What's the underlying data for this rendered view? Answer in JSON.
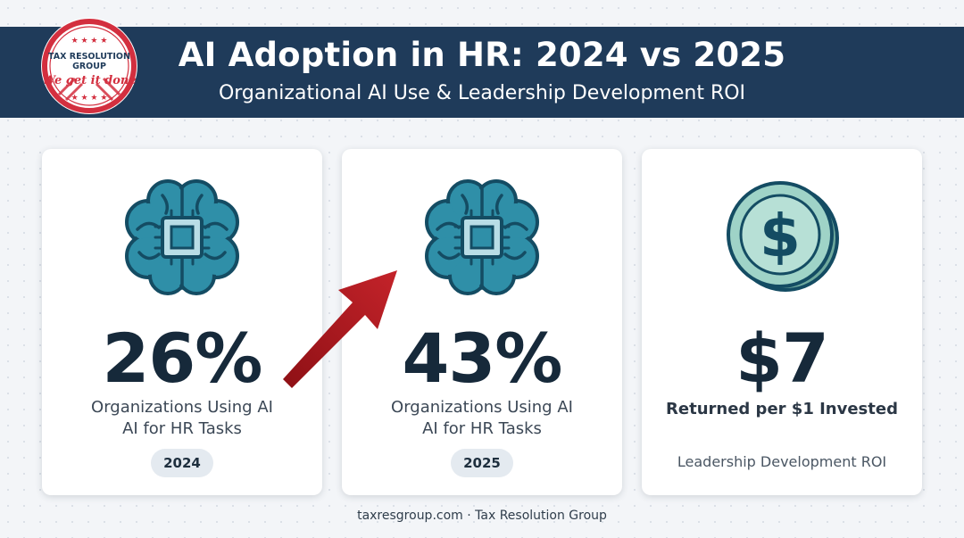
{
  "header": {
    "title": "AI Adoption in HR: 2024 vs 2025",
    "subtitle": "Organizational AI Use & Leadership Development ROI",
    "bg_color": "#1f3b5a"
  },
  "logo": {
    "top_text": "TAX RESOLUTION GROUP",
    "tagline": "We get it done",
    "accent_color": "#d32f3f"
  },
  "cards": [
    {
      "icon": "brain-chip-icon",
      "value": "26%",
      "desc_line1": "Organizations Using AI",
      "desc_line2": "AI for HR Tasks",
      "year": "2024"
    },
    {
      "icon": "brain-chip-icon",
      "value": "43%",
      "desc_line1": "Organizations Using AI",
      "desc_line2": "AI for HR Tasks",
      "year": "2025"
    },
    {
      "icon": "dollar-coin-icon",
      "value": "$7",
      "desc": "Returned per $1 Invested",
      "label": "Leadership Development ROI"
    }
  ],
  "colors": {
    "brain": "#2f8fa8",
    "brain_dark": "#144c63",
    "coin": "#9fd3c7",
    "arrow": "#b3191e"
  },
  "footer": "taxresgroup.com · Tax Resolution Group"
}
